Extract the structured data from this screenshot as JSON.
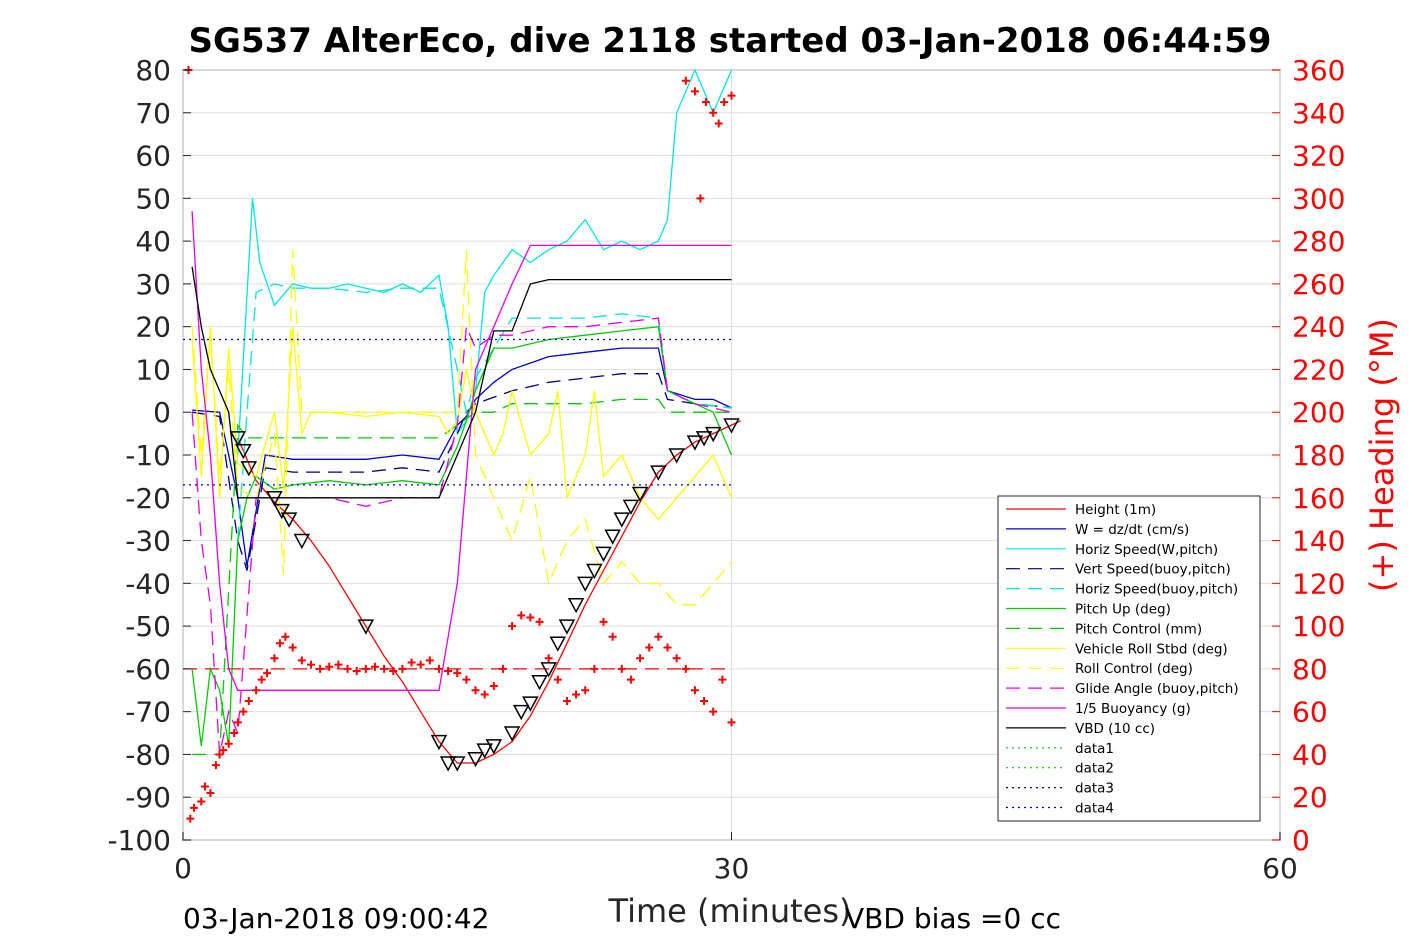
{
  "chart_data": {
    "type": "line",
    "title": "SG537 AlterEco, dive 2118 started 03-Jan-2018 06:44:59",
    "xlabel": "Time (minutes)",
    "ylabel_right": "(+) Heading (°M)",
    "xlim": [
      0,
      60
    ],
    "ylim": [
      -100,
      80
    ],
    "ylim_right": [
      0,
      360
    ],
    "xticks": [
      0,
      30,
      60
    ],
    "yticks": [
      80,
      70,
      60,
      50,
      40,
      30,
      20,
      10,
      0,
      -10,
      -20,
      -30,
      -40,
      -50,
      -60,
      -70,
      -80,
      -90,
      -100
    ],
    "yticks_right": [
      360,
      340,
      320,
      300,
      280,
      260,
      240,
      220,
      200,
      180,
      160,
      140,
      120,
      100,
      80,
      60,
      40,
      20,
      0
    ],
    "grid": true,
    "legend_position": "lower-right",
    "footer_left": "03-Jan-2018 09:00:42",
    "footer_right": "VBD bias =0 cc",
    "colors": {
      "red": "#ff0000",
      "blue": "#0000cc",
      "cyan": "#00e5e5",
      "navy": "#000080",
      "green": "#00cc00",
      "yellow": "#ffff00",
      "magenta": "#e600e6",
      "black": "#000000"
    },
    "series": [
      {
        "name": "Height (1m)",
        "color": "#ff0000",
        "style": "solid",
        "x": [
          3,
          4,
          5,
          6,
          7,
          8,
          9,
          10,
          11,
          12,
          13,
          14,
          15,
          16,
          17,
          18,
          19,
          20,
          21,
          22,
          23,
          24,
          25,
          26,
          27,
          28,
          29,
          30,
          30.5
        ],
        "y": [
          -6,
          -16,
          -21,
          -25,
          -30,
          -36,
          -43,
          -50,
          -57,
          -63,
          -70,
          -77,
          -82,
          -82,
          -80,
          -77,
          -71,
          -63,
          -54,
          -45,
          -37,
          -29,
          -21,
          -14,
          -10,
          -7,
          -5,
          -3,
          -2
        ]
      },
      {
        "name": "W = dz/dt (cm/s)",
        "color": "#0000cc",
        "style": "solid",
        "x": [
          0.5,
          2,
          3,
          3.5,
          4.5,
          6,
          8,
          10,
          12,
          14,
          15,
          15.5,
          16,
          17,
          18,
          20,
          22,
          24,
          26,
          26.5,
          28,
          29,
          30
        ],
        "y": [
          0.5,
          0,
          -20,
          -36,
          -10,
          -11,
          -11,
          -11,
          -10,
          -11,
          -3,
          -1,
          3,
          7,
          10,
          13,
          14,
          15,
          15,
          5,
          3,
          3,
          1
        ]
      },
      {
        "name": "Horiz Speed(W,pitch)",
        "color": "#00e5e5",
        "style": "solid",
        "x": [
          3,
          3.4,
          3.8,
          4.2,
          5,
          6,
          7,
          8,
          9,
          10,
          11,
          12,
          13,
          14,
          14.5,
          15,
          15.5,
          16,
          16.5,
          17,
          17.5,
          18,
          19,
          20,
          21,
          22,
          23,
          24,
          25,
          26,
          26.5,
          27,
          28,
          29,
          30
        ],
        "y": [
          -10,
          20,
          50,
          35,
          25,
          30,
          29,
          29,
          30,
          29,
          28,
          30,
          28,
          32,
          20,
          -5,
          -2,
          5,
          28,
          32,
          35,
          38,
          35,
          38,
          40,
          45,
          38,
          40,
          38,
          40,
          45,
          70,
          80,
          70,
          80
        ]
      },
      {
        "name": "Vert Speed(buoy,pitch)",
        "color": "#000080",
        "style": "dashed",
        "x": [
          0.5,
          2,
          3,
          3.5,
          4.5,
          6,
          8,
          10,
          12,
          14,
          15,
          15.5,
          16,
          18,
          20,
          22,
          24,
          26,
          26.5,
          28,
          30
        ],
        "y": [
          0,
          -1,
          -30,
          -37,
          -13,
          -14,
          -14,
          -14,
          -13,
          -14,
          -5,
          0,
          2,
          5,
          7,
          8,
          9,
          9,
          3,
          2,
          1
        ]
      },
      {
        "name": "Horiz Speed(buoy,pitch)",
        "color": "#00e5e5",
        "style": "dashed",
        "x": [
          3,
          3.5,
          4,
          5,
          6,
          8,
          10,
          12,
          14,
          15,
          15.5,
          16,
          18,
          20,
          22,
          24,
          26,
          26.5,
          28,
          30
        ],
        "y": [
          -30,
          0,
          28,
          30,
          29,
          29,
          28,
          29,
          29,
          10,
          0,
          8,
          22,
          22,
          22,
          23,
          22,
          5,
          2,
          1
        ]
      },
      {
        "name": "Pitch Up (deg)",
        "color": "#00cc00",
        "style": "solid",
        "x": [
          0.5,
          1,
          1.5,
          2,
          2.5,
          3,
          3.5,
          4,
          5,
          6,
          8,
          10,
          12,
          14,
          15,
          15.5,
          16,
          17,
          18,
          20,
          22,
          24,
          26,
          26.5,
          28,
          29,
          30
        ],
        "y": [
          -60,
          -78,
          -60,
          -65,
          -78,
          -30,
          -20,
          -15,
          -18,
          -17,
          -16,
          -17,
          -16,
          -17,
          -8,
          -2,
          5,
          15,
          15,
          17,
          18,
          19,
          20,
          5,
          2,
          0,
          -10
        ]
      },
      {
        "name": "Pitch Control (mm)",
        "color": "#00cc00",
        "style": "dashed",
        "x": [
          0.5,
          2,
          3,
          3.5,
          5,
          8,
          12,
          14,
          15,
          16,
          17,
          18,
          20,
          22,
          24,
          26,
          26.5,
          28,
          30
        ],
        "y": [
          -80,
          -80,
          -3,
          -6,
          -6,
          -6,
          -6,
          -6,
          -3,
          0,
          0,
          2,
          2,
          2,
          3,
          3,
          0,
          0,
          0
        ]
      },
      {
        "name": "Vehicle Roll Stbd (deg)",
        "color": "#ffff00",
        "style": "solid",
        "x": [
          0.5,
          1,
          1.5,
          2,
          2.5,
          3,
          4,
          5,
          5.5,
          6,
          6.5,
          7,
          8,
          10,
          12,
          14,
          14.5,
          15,
          15.5,
          16,
          16.5,
          17,
          17.5,
          18,
          19,
          20,
          20.5,
          21,
          22,
          22.5,
          23,
          24,
          25,
          26,
          27,
          28,
          29,
          30
        ],
        "y": [
          17,
          -15,
          20,
          -20,
          15,
          -12,
          -15,
          0,
          -18,
          20,
          -5,
          0,
          0,
          -1,
          0,
          -1,
          -5,
          -2,
          10,
          0,
          -5,
          -10,
          -5,
          5,
          -10,
          -5,
          5,
          -20,
          -10,
          5,
          -15,
          -10,
          -20,
          -25,
          -20,
          -15,
          -10,
          -20
        ]
      },
      {
        "name": "Roll Control (deg)",
        "color": "#ffff00",
        "style": "dashed",
        "x": [
          0.5,
          1,
          1.5,
          2,
          2.5,
          3,
          4,
          5,
          5.5,
          6,
          6.5,
          7,
          8,
          10,
          12,
          14,
          15,
          15.5,
          16,
          17,
          18,
          19,
          20,
          21,
          22,
          23,
          24,
          25,
          26,
          27,
          28,
          29,
          30
        ],
        "y": [
          20,
          -10,
          18,
          -15,
          10,
          -18,
          -20,
          -5,
          -38,
          38,
          0,
          0,
          0,
          0,
          0,
          0,
          0,
          38,
          -10,
          -20,
          -30,
          -15,
          -40,
          -30,
          -25,
          -40,
          -35,
          -40,
          -40,
          -45,
          -45,
          -40,
          -35
        ]
      },
      {
        "name": "Glide Angle (buoy,pitch)",
        "color": "#e600e6",
        "style": "dashed",
        "x": [
          0.5,
          1,
          1.5,
          2,
          2.5,
          3,
          4,
          5,
          6,
          8,
          10,
          12,
          14,
          15,
          15.5,
          16,
          17,
          18,
          20,
          22,
          24,
          26,
          26.5,
          28,
          30
        ],
        "y": [
          0,
          -30,
          -45,
          -80,
          -70,
          -75,
          -20,
          -20,
          -20,
          -20,
          -22,
          -20,
          -20,
          -3,
          20,
          15,
          18,
          18,
          20,
          20,
          21,
          22,
          5,
          2,
          0
        ]
      },
      {
        "name": "1/5 Buoyancy (g)",
        "color": "#e600e6",
        "style": "solid",
        "x": [
          0.5,
          1,
          1.5,
          2,
          2.5,
          3,
          12,
          14,
          15,
          16,
          17,
          18,
          19,
          20,
          22,
          24,
          26,
          28,
          30
        ],
        "y": [
          47,
          10,
          -10,
          -40,
          -60,
          -65,
          -65,
          -65,
          -40,
          10,
          20,
          30,
          39,
          39,
          39,
          39,
          39,
          39,
          39
        ]
      },
      {
        "name": "VBD (10 cc)",
        "color": "#000000",
        "style": "solid",
        "x": [
          0.5,
          1,
          1.5,
          2,
          2.5,
          3,
          14,
          15,
          16,
          17,
          18,
          19,
          20,
          22,
          24,
          26,
          28,
          30
        ],
        "y": [
          34,
          20,
          10,
          5,
          0,
          -20,
          -20,
          -10,
          0,
          19,
          19,
          30,
          31,
          31,
          31,
          31,
          31,
          31
        ]
      },
      {
        "name": "data1",
        "color": "#00cc00",
        "style": "dotted",
        "x": [],
        "y": []
      },
      {
        "name": "data2",
        "color": "#00cc00",
        "style": "dotted",
        "x": [],
        "y": []
      },
      {
        "name": "data3",
        "color": "#0000cc",
        "style": "dotted",
        "x": [
          0,
          30
        ],
        "y": [
          17,
          17
        ]
      },
      {
        "name": "data4",
        "color": "#0000cc",
        "style": "dotted",
        "x": [
          0,
          30
        ],
        "y": [
          -17,
          -17
        ]
      }
    ],
    "reference_lines": [
      {
        "axis": "right",
        "value": 80,
        "color": "#ff0000",
        "style": "dashed",
        "x": [
          0,
          30
        ]
      }
    ],
    "heading_points": {
      "color": "#ff0000",
      "marker": "+",
      "x": [
        0.4,
        0.6,
        1,
        1.2,
        1.5,
        1.8,
        2,
        2.2,
        2.5,
        2.8,
        3,
        3.3,
        3.6,
        4,
        4.3,
        4.6,
        5,
        5.3,
        5.6,
        6,
        6.5,
        7,
        7.5,
        8,
        8.5,
        9,
        9.5,
        10,
        10.5,
        11,
        11.5,
        12,
        12.5,
        13,
        13.5,
        14,
        14.5,
        15,
        15.5,
        16,
        16.5,
        17,
        17.5,
        18,
        18.5,
        19,
        19.5,
        20,
        20.5,
        21,
        21.5,
        22,
        22.5,
        23,
        23.5,
        24,
        24.5,
        25,
        25.5,
        26,
        26.5,
        27,
        27.5,
        28,
        28.5,
        29,
        29.5,
        30,
        0.3,
        27.5,
        28,
        28.3,
        28.6,
        29,
        29.3,
        29.6,
        30
      ],
      "y": [
        10,
        15,
        18,
        25,
        22,
        35,
        40,
        42,
        45,
        50,
        55,
        60,
        65,
        70,
        75,
        78,
        85,
        92,
        95,
        90,
        84,
        82,
        80,
        81,
        82,
        80,
        79,
        80,
        81,
        80,
        79,
        80,
        83,
        82,
        84,
        80,
        79,
        78,
        75,
        70,
        68,
        72,
        80,
        100,
        105,
        104,
        102,
        85,
        75,
        65,
        68,
        70,
        80,
        102,
        95,
        80,
        75,
        85,
        90,
        95,
        90,
        85,
        80,
        70,
        65,
        60,
        75,
        55,
        360,
        355,
        350,
        300,
        345,
        340,
        335,
        345,
        348
      ]
    },
    "waypoint_markers": {
      "x": [
        3,
        3.3,
        3.6,
        5,
        5.4,
        5.8,
        6.5,
        10,
        14,
        14.5,
        15,
        16,
        16.5,
        17,
        18,
        18.5,
        19,
        19.5,
        20,
        20.5,
        21,
        21.5,
        22,
        22.5,
        23,
        23.5,
        24,
        24.5,
        25,
        26,
        27,
        28,
        28.5,
        29,
        30
      ],
      "y": [
        -6,
        -9,
        -13,
        -20,
        -23,
        -25,
        -30,
        -50,
        -77,
        -82,
        -82,
        -81,
        -79,
        -78,
        -75,
        -70,
        -68,
        -63,
        -60,
        -54,
        -50,
        -45,
        -40,
        -37,
        -33,
        -29,
        -25,
        -22,
        -19,
        -14,
        -10,
        -7,
        -6,
        -5,
        -3
      ]
    }
  }
}
